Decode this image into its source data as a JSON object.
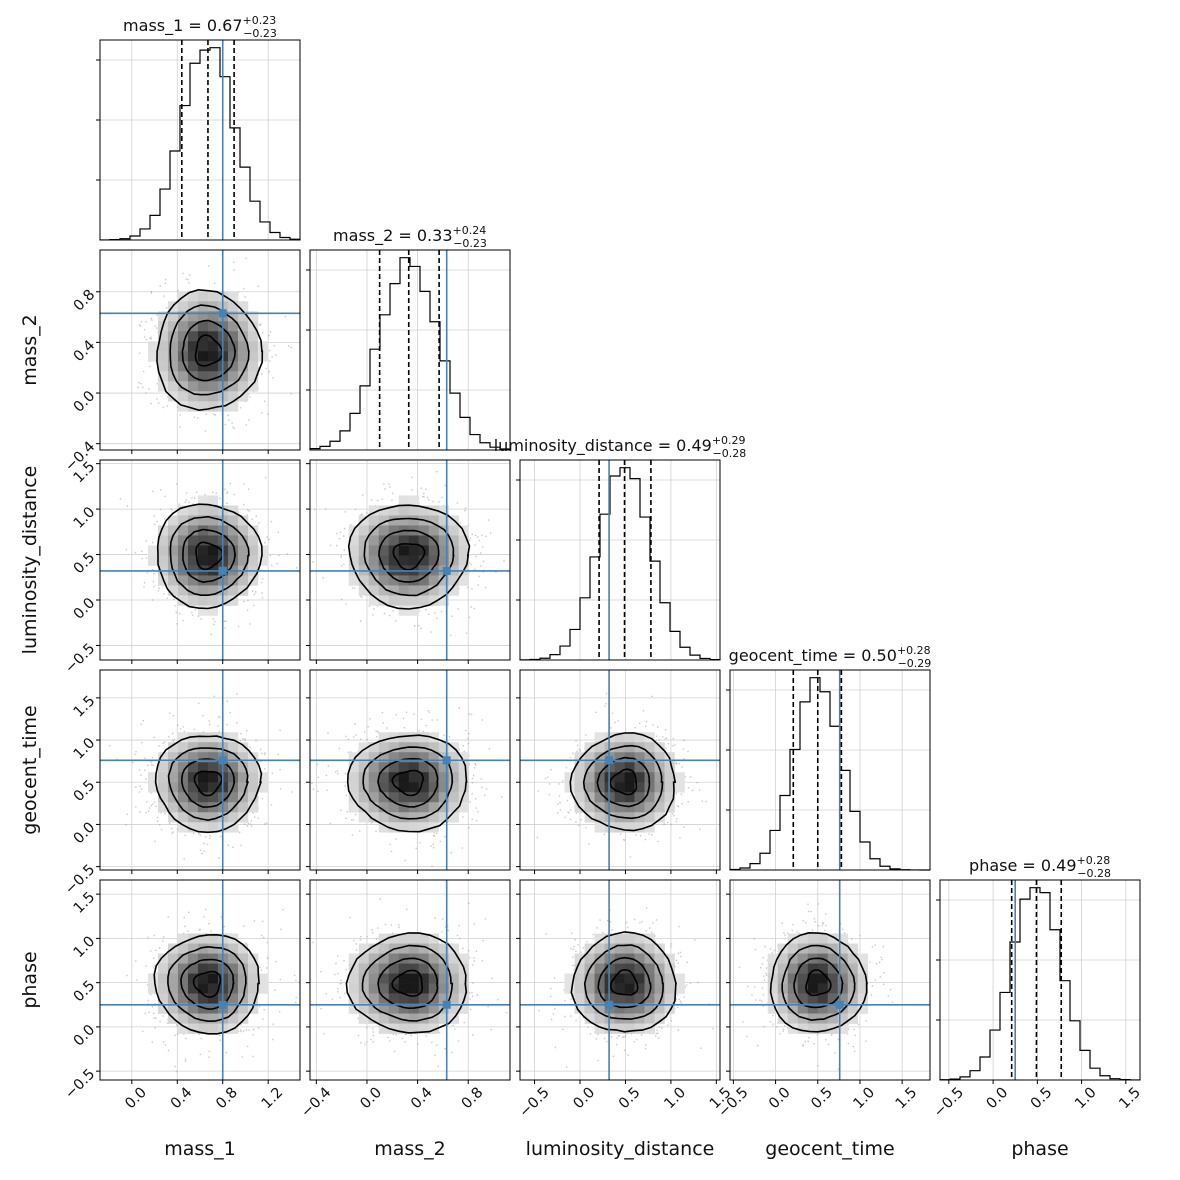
{
  "chart_data": {
    "type": "corner",
    "parameters": [
      {
        "name": "mass_1",
        "median": "0.67",
        "plus": "+0.23",
        "minus": "−0.23",
        "q16": 0.44,
        "q50": 0.67,
        "q84": 0.9,
        "sigma": 0.23,
        "truth": 0.8,
        "range": [
          -0.28,
          1.48
        ],
        "ticks": [
          "0.0",
          "0.4",
          "0.8",
          "1.2"
        ],
        "tick_values": [
          0.0,
          0.4,
          0.8,
          1.2
        ]
      },
      {
        "name": "mass_2",
        "median": "0.33",
        "plus": "+0.24",
        "minus": "−0.23",
        "q16": 0.1,
        "q50": 0.33,
        "q84": 0.57,
        "sigma": 0.235,
        "truth": 0.63,
        "range": [
          -0.45,
          1.13
        ],
        "ticks": [
          "−0.4",
          "0.0",
          "0.4",
          "0.8"
        ],
        "tick_values": [
          -0.4,
          0.0,
          0.4,
          0.8
        ]
      },
      {
        "name": "luminosity_distance",
        "median": "0.49",
        "plus": "+0.29",
        "minus": "−0.28",
        "q16": 0.21,
        "q50": 0.49,
        "q84": 0.78,
        "sigma": 0.285,
        "truth": 0.32,
        "range": [
          -0.66,
          1.54
        ],
        "ticks": [
          "−0.5",
          "0.0",
          "0.5",
          "1.0",
          "1.5"
        ],
        "tick_values": [
          -0.5,
          0.0,
          0.5,
          1.0,
          1.5
        ]
      },
      {
        "name": "geocent_time",
        "median": "0.50",
        "plus": "+0.28",
        "minus": "−0.29",
        "q16": 0.21,
        "q50": 0.5,
        "q84": 0.78,
        "sigma": 0.285,
        "truth": 0.76,
        "range": [
          -0.54,
          1.83
        ],
        "ticks": [
          "−0.5",
          "0.0",
          "0.5",
          "1.0",
          "1.5"
        ],
        "tick_values": [
          -0.5,
          0.0,
          0.5,
          1.0,
          1.5
        ]
      },
      {
        "name": "phase",
        "median": "0.49",
        "plus": "+0.28",
        "minus": "−0.28",
        "q16": 0.21,
        "q50": 0.49,
        "q84": 0.77,
        "sigma": 0.28,
        "truth": 0.25,
        "range": [
          -0.6,
          1.66
        ],
        "ticks": [
          "−0.5",
          "0.0",
          "0.5",
          "1.0",
          "1.5"
        ],
        "tick_values": [
          -0.5,
          0.0,
          0.5,
          1.0,
          1.5
        ]
      }
    ],
    "truth_color": "#4682b4",
    "contour_color": "#000000",
    "scatter_color": "#9a9a9a",
    "grid": true
  }
}
